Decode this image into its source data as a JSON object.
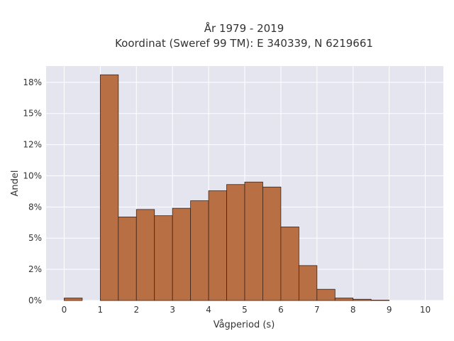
{
  "chart_data": {
    "type": "bar",
    "title": "År 1979 - 2019",
    "subtitle": "Koordinat (Sweref 99 TM): E 340339, N 6219661",
    "xlabel": "Vågperiod (s)",
    "ylabel": "Andel",
    "xlim": [
      -0.5,
      10.5
    ],
    "ylim": [
      0,
      18.8
    ],
    "grid": true,
    "x_ticks": [
      0,
      1,
      2,
      3,
      4,
      5,
      6,
      7,
      8,
      9,
      10
    ],
    "y_ticks": [
      {
        "value": 0,
        "label": "0%"
      },
      {
        "value": 2.5,
        "label": "2%"
      },
      {
        "value": 5,
        "label": "5%"
      },
      {
        "value": 7.5,
        "label": "8%"
      },
      {
        "value": 10,
        "label": "10%"
      },
      {
        "value": 12.5,
        "label": "12%"
      },
      {
        "value": 15,
        "label": "15%"
      },
      {
        "value": 17.5,
        "label": "18%"
      }
    ],
    "bars": [
      {
        "x0": 0.0,
        "x1": 0.5,
        "value": 0.2
      },
      {
        "x0": 1.0,
        "x1": 1.5,
        "value": 18.1
      },
      {
        "x0": 1.5,
        "x1": 2.0,
        "value": 6.7
      },
      {
        "x0": 2.0,
        "x1": 2.5,
        "value": 7.3
      },
      {
        "x0": 2.5,
        "x1": 3.0,
        "value": 6.8
      },
      {
        "x0": 3.0,
        "x1": 3.5,
        "value": 7.4
      },
      {
        "x0": 3.5,
        "x1": 4.0,
        "value": 8.0
      },
      {
        "x0": 4.0,
        "x1": 4.5,
        "value": 8.8
      },
      {
        "x0": 4.5,
        "x1": 5.0,
        "value": 9.3
      },
      {
        "x0": 5.0,
        "x1": 5.5,
        "value": 9.5
      },
      {
        "x0": 5.5,
        "x1": 6.0,
        "value": 9.1
      },
      {
        "x0": 6.0,
        "x1": 6.5,
        "value": 5.9
      },
      {
        "x0": 6.5,
        "x1": 7.0,
        "value": 2.8
      },
      {
        "x0": 7.0,
        "x1": 7.5,
        "value": 0.9
      },
      {
        "x0": 7.5,
        "x1": 8.0,
        "value": 0.2
      },
      {
        "x0": 8.0,
        "x1": 8.5,
        "value": 0.1
      },
      {
        "x0": 8.5,
        "x1": 9.0,
        "value": 0.03
      }
    ],
    "colors": {
      "bar_fill": "#b96f44",
      "bar_stroke": "#3d2416",
      "plot_bg": "#e5e5f0",
      "grid": "#ffffff"
    }
  }
}
